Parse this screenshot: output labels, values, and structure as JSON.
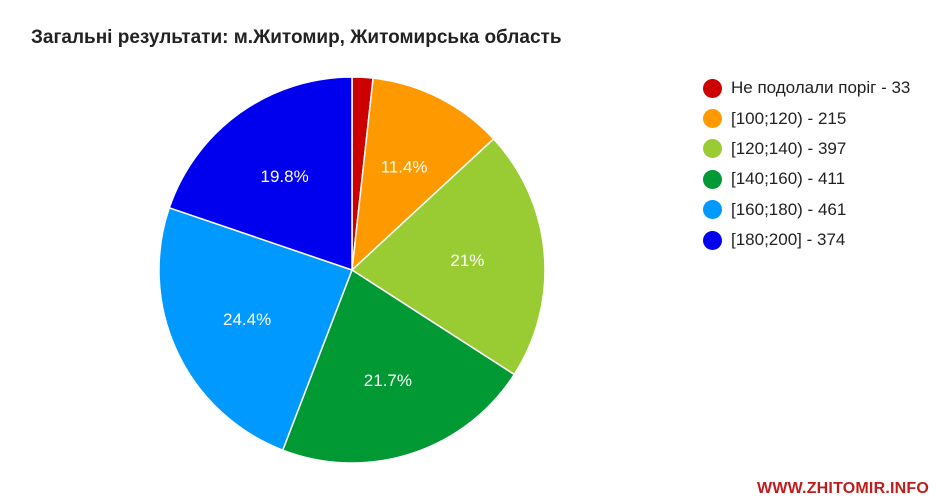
{
  "chart_data": {
    "type": "pie",
    "title": "Загальні результати: м.Житомир, Житомирська область",
    "legend_position": "right",
    "categories": [
      "Не подолали поріг",
      "[100;120)",
      "[120;140)",
      "[140;160)",
      "[160;180)",
      "[180;200]"
    ],
    "values": [
      33,
      215,
      397,
      411,
      461,
      374
    ],
    "colors": [
      "#cc0000",
      "#ff9900",
      "#99cc33",
      "#009933",
      "#0099ff",
      "#0000ee"
    ],
    "legend_labels": [
      "Не подолали поріг - 33",
      "[100;120) - 215",
      "[120;140) - 397",
      "[140;160) - 411",
      "[160;180) - 461",
      "[180;200] - 374"
    ],
    "slice_labels": [
      "",
      "11.4%",
      "21%",
      "21.7%",
      "24.4%",
      "19.8%"
    ],
    "start_angle_deg": 0,
    "direction": "clockwise"
  },
  "watermark": "WWW.ZHITOMIR.INFO"
}
